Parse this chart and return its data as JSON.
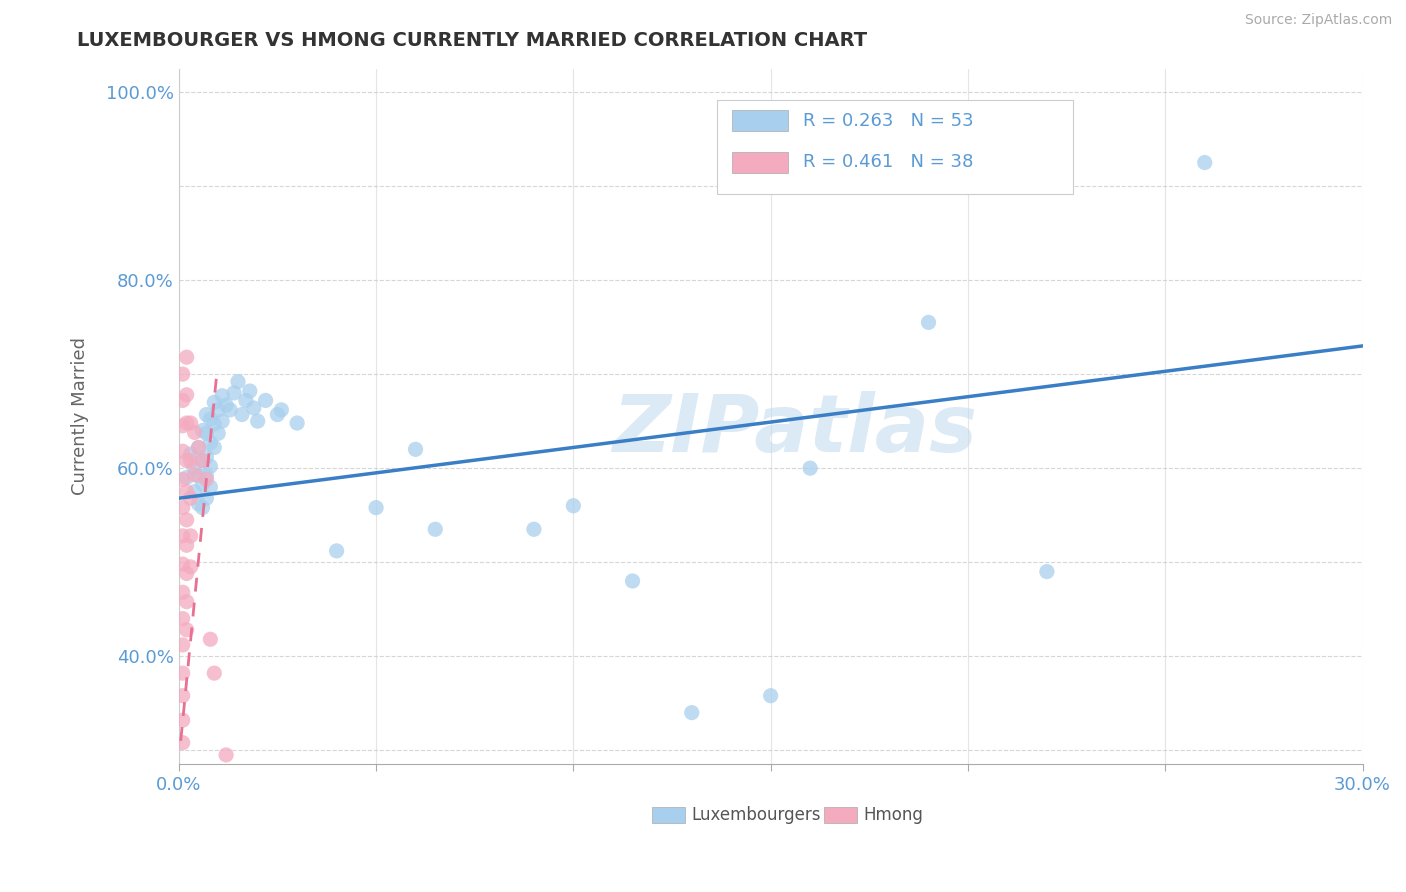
{
  "title": "LUXEMBOURGER VS HMONG CURRENTLY MARRIED CORRELATION CHART",
  "source": "Source: ZipAtlas.com",
  "ylabel": "Currently Married",
  "xlim": [
    0.0,
    0.3
  ],
  "ylim": [
    0.285,
    1.025
  ],
  "lux_color": "#A8CFED",
  "hmong_color": "#F4AABF",
  "lux_trend_color": "#3A7EC6",
  "hmong_trend_color": "#E87090",
  "legend_R_lux": "R = 0.263",
  "legend_N_lux": "N = 53",
  "legend_R_hmong": "R = 0.461",
  "legend_N_hmong": "N = 38",
  "watermark": "ZIPatlas",
  "tick_color": "#5B9BD5",
  "grid_color": "#CCCCCC",
  "lux_points": [
    [
      0.002,
      0.59
    ],
    [
      0.003,
      0.615
    ],
    [
      0.004,
      0.6
    ],
    [
      0.004,
      0.575
    ],
    [
      0.005,
      0.622
    ],
    [
      0.005,
      0.592
    ],
    [
      0.005,
      0.562
    ],
    [
      0.006,
      0.64
    ],
    [
      0.006,
      0.608
    ],
    [
      0.006,
      0.583
    ],
    [
      0.006,
      0.558
    ],
    [
      0.007,
      0.657
    ],
    [
      0.007,
      0.637
    ],
    [
      0.007,
      0.612
    ],
    [
      0.007,
      0.592
    ],
    [
      0.007,
      0.568
    ],
    [
      0.008,
      0.652
    ],
    [
      0.008,
      0.627
    ],
    [
      0.008,
      0.602
    ],
    [
      0.008,
      0.58
    ],
    [
      0.009,
      0.67
    ],
    [
      0.009,
      0.647
    ],
    [
      0.009,
      0.622
    ],
    [
      0.01,
      0.662
    ],
    [
      0.01,
      0.637
    ],
    [
      0.011,
      0.677
    ],
    [
      0.011,
      0.65
    ],
    [
      0.012,
      0.667
    ],
    [
      0.013,
      0.662
    ],
    [
      0.014,
      0.68
    ],
    [
      0.015,
      0.692
    ],
    [
      0.016,
      0.657
    ],
    [
      0.017,
      0.672
    ],
    [
      0.018,
      0.682
    ],
    [
      0.019,
      0.664
    ],
    [
      0.02,
      0.65
    ],
    [
      0.022,
      0.672
    ],
    [
      0.025,
      0.657
    ],
    [
      0.026,
      0.662
    ],
    [
      0.03,
      0.648
    ],
    [
      0.04,
      0.512
    ],
    [
      0.05,
      0.558
    ],
    [
      0.06,
      0.62
    ],
    [
      0.065,
      0.535
    ],
    [
      0.09,
      0.535
    ],
    [
      0.1,
      0.56
    ],
    [
      0.115,
      0.48
    ],
    [
      0.13,
      0.34
    ],
    [
      0.15,
      0.358
    ],
    [
      0.16,
      0.6
    ],
    [
      0.19,
      0.755
    ],
    [
      0.22,
      0.49
    ],
    [
      0.26,
      0.925
    ]
  ],
  "hmong_points": [
    [
      0.001,
      0.7
    ],
    [
      0.001,
      0.672
    ],
    [
      0.001,
      0.645
    ],
    [
      0.001,
      0.618
    ],
    [
      0.001,
      0.588
    ],
    [
      0.001,
      0.558
    ],
    [
      0.001,
      0.528
    ],
    [
      0.001,
      0.498
    ],
    [
      0.001,
      0.468
    ],
    [
      0.001,
      0.44
    ],
    [
      0.001,
      0.412
    ],
    [
      0.001,
      0.382
    ],
    [
      0.001,
      0.358
    ],
    [
      0.001,
      0.332
    ],
    [
      0.001,
      0.308
    ],
    [
      0.002,
      0.718
    ],
    [
      0.002,
      0.678
    ],
    [
      0.002,
      0.648
    ],
    [
      0.002,
      0.608
    ],
    [
      0.002,
      0.575
    ],
    [
      0.002,
      0.545
    ],
    [
      0.002,
      0.518
    ],
    [
      0.002,
      0.488
    ],
    [
      0.002,
      0.458
    ],
    [
      0.002,
      0.428
    ],
    [
      0.003,
      0.648
    ],
    [
      0.003,
      0.608
    ],
    [
      0.003,
      0.568
    ],
    [
      0.003,
      0.528
    ],
    [
      0.003,
      0.495
    ],
    [
      0.004,
      0.638
    ],
    [
      0.004,
      0.593
    ],
    [
      0.005,
      0.622
    ],
    [
      0.006,
      0.608
    ],
    [
      0.007,
      0.588
    ],
    [
      0.008,
      0.418
    ],
    [
      0.009,
      0.382
    ],
    [
      0.012,
      0.295
    ]
  ],
  "lux_trend_x": [
    0.0,
    0.3
  ],
  "lux_trend_y": [
    0.568,
    0.73
  ],
  "hmong_trend_x": [
    0.0005,
    0.0095
  ],
  "hmong_trend_y": [
    0.31,
    0.695
  ]
}
